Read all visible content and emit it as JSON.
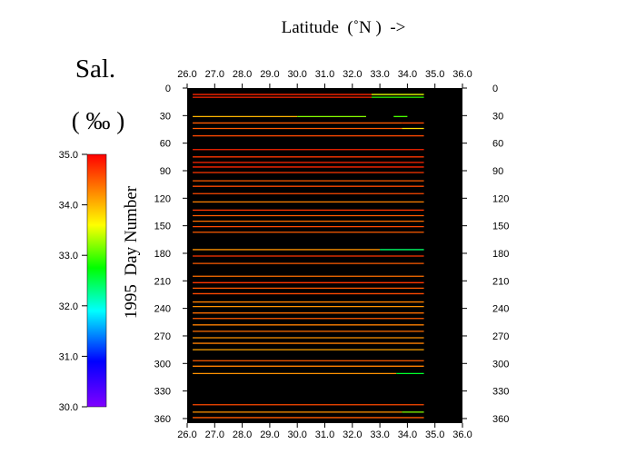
{
  "chart_data": {
    "type": "heatmap",
    "title": "Sal.",
    "unit": "( ‰ )",
    "xlabel": "Latitude  (˚N )  ->",
    "ylabel": "1995  Day Number",
    "x_ticks": [
      "26.0",
      "27.0",
      "28.0",
      "29.0",
      "30.0",
      "31.0",
      "32.0",
      "33.0",
      "34.0",
      "35.0",
      "36.0"
    ],
    "y_ticks": [
      "0",
      "30",
      "60",
      "90",
      "120",
      "150",
      "180",
      "210",
      "240",
      "270",
      "300",
      "330",
      "360"
    ],
    "xlim": [
      26.0,
      36.0
    ],
    "ylim": [
      0,
      365
    ],
    "y_inverted": true,
    "colorbar": {
      "range": [
        30.0,
        35.0
      ],
      "ticks": [
        "35.0",
        "34.0",
        "33.0",
        "32.0",
        "31.0",
        "30.0"
      ],
      "colormap": "rainbow (purple → blue → cyan → green → yellow → orange → red)"
    },
    "background_color": "#000000",
    "lat_extent": [
      26.2,
      34.6
    ],
    "transects": [
      {
        "day": 7,
        "segments": [
          {
            "from": 26.2,
            "to": 32.7,
            "sal": 34.8
          },
          {
            "from": 32.7,
            "to": 34.6,
            "sal": 33.5
          }
        ]
      },
      {
        "day": 10,
        "segments": [
          {
            "from": 26.2,
            "to": 32.7,
            "sal": 34.8
          },
          {
            "from": 32.7,
            "to": 34.6,
            "sal": 32.9
          }
        ]
      },
      {
        "day": 31,
        "segments": [
          {
            "from": 26.2,
            "to": 30.0,
            "sal": 34.0
          },
          {
            "from": 30.0,
            "to": 32.5,
            "sal": 33.2
          },
          {
            "from": 33.5,
            "to": 34.0,
            "sal": 33.0
          }
        ]
      },
      {
        "day": 38,
        "segments": [
          {
            "from": 26.2,
            "to": 33.8,
            "sal": 34.5
          },
          {
            "from": 33.8,
            "to": 34.6,
            "sal": 34.6
          }
        ]
      },
      {
        "day": 44,
        "segments": [
          {
            "from": 26.2,
            "to": 33.8,
            "sal": 34.5
          },
          {
            "from": 33.8,
            "to": 34.6,
            "sal": 33.8
          }
        ]
      },
      {
        "day": 52,
        "segments": [
          {
            "from": 26.2,
            "to": 34.6,
            "sal": 34.6
          }
        ]
      },
      {
        "day": 67,
        "segments": [
          {
            "from": 26.2,
            "to": 34.6,
            "sal": 34.8
          }
        ]
      },
      {
        "day": 75,
        "segments": [
          {
            "from": 26.2,
            "to": 34.6,
            "sal": 34.7
          }
        ]
      },
      {
        "day": 81,
        "segments": [
          {
            "from": 26.2,
            "to": 34.6,
            "sal": 34.8
          }
        ]
      },
      {
        "day": 86,
        "segments": [
          {
            "from": 26.2,
            "to": 34.6,
            "sal": 34.8
          }
        ]
      },
      {
        "day": 92,
        "segments": [
          {
            "from": 26.2,
            "to": 34.6,
            "sal": 34.7
          }
        ]
      },
      {
        "day": 101,
        "segments": [
          {
            "from": 26.2,
            "to": 34.6,
            "sal": 34.5
          }
        ]
      },
      {
        "day": 107,
        "segments": [
          {
            "from": 26.2,
            "to": 34.6,
            "sal": 34.6
          }
        ]
      },
      {
        "day": 115,
        "segments": [
          {
            "from": 26.2,
            "to": 34.6,
            "sal": 34.6
          }
        ]
      },
      {
        "day": 124,
        "segments": [
          {
            "from": 26.2,
            "to": 34.6,
            "sal": 34.3
          }
        ]
      },
      {
        "day": 133,
        "segments": [
          {
            "from": 26.2,
            "to": 34.6,
            "sal": 34.7
          }
        ]
      },
      {
        "day": 139,
        "segments": [
          {
            "from": 26.2,
            "to": 34.6,
            "sal": 34.5
          }
        ]
      },
      {
        "day": 145,
        "segments": [
          {
            "from": 26.2,
            "to": 34.6,
            "sal": 34.4
          }
        ]
      },
      {
        "day": 151,
        "segments": [
          {
            "from": 26.2,
            "to": 34.6,
            "sal": 34.6
          }
        ]
      },
      {
        "day": 157,
        "segments": [
          {
            "from": 26.2,
            "to": 34.6,
            "sal": 34.5
          }
        ]
      },
      {
        "day": 176,
        "segments": [
          {
            "from": 26.2,
            "to": 33.0,
            "sal": 34.2
          },
          {
            "from": 33.0,
            "to": 34.6,
            "sal": 32.4
          }
        ]
      },
      {
        "day": 183,
        "segments": [
          {
            "from": 26.2,
            "to": 34.6,
            "sal": 34.7
          }
        ]
      },
      {
        "day": 191,
        "segments": [
          {
            "from": 26.2,
            "to": 34.6,
            "sal": 34.5
          }
        ]
      },
      {
        "day": 205,
        "segments": [
          {
            "from": 26.2,
            "to": 34.6,
            "sal": 34.4
          }
        ]
      },
      {
        "day": 212,
        "segments": [
          {
            "from": 26.2,
            "to": 34.6,
            "sal": 34.7
          }
        ]
      },
      {
        "day": 218,
        "segments": [
          {
            "from": 26.2,
            "to": 34.6,
            "sal": 34.5
          }
        ]
      },
      {
        "day": 224,
        "segments": [
          {
            "from": 26.2,
            "to": 34.6,
            "sal": 34.6
          }
        ]
      },
      {
        "day": 233,
        "segments": [
          {
            "from": 26.2,
            "to": 34.6,
            "sal": 34.3
          }
        ]
      },
      {
        "day": 238,
        "segments": [
          {
            "from": 26.2,
            "to": 34.6,
            "sal": 34.2
          }
        ]
      },
      {
        "day": 245,
        "segments": [
          {
            "from": 26.2,
            "to": 34.6,
            "sal": 34.4
          }
        ]
      },
      {
        "day": 251,
        "segments": [
          {
            "from": 26.2,
            "to": 34.6,
            "sal": 34.5
          }
        ]
      },
      {
        "day": 258,
        "segments": [
          {
            "from": 26.2,
            "to": 34.6,
            "sal": 34.3
          }
        ]
      },
      {
        "day": 265,
        "segments": [
          {
            "from": 26.2,
            "to": 34.6,
            "sal": 34.4
          }
        ]
      },
      {
        "day": 272,
        "segments": [
          {
            "from": 26.2,
            "to": 34.6,
            "sal": 34.2
          }
        ]
      },
      {
        "day": 278,
        "segments": [
          {
            "from": 26.2,
            "to": 34.6,
            "sal": 34.3
          }
        ]
      },
      {
        "day": 285,
        "segments": [
          {
            "from": 26.2,
            "to": 34.6,
            "sal": 34.1
          }
        ]
      },
      {
        "day": 297,
        "segments": [
          {
            "from": 26.2,
            "to": 34.6,
            "sal": 34.5
          }
        ]
      },
      {
        "day": 303,
        "segments": [
          {
            "from": 26.2,
            "to": 34.6,
            "sal": 34.3
          }
        ]
      },
      {
        "day": 311,
        "segments": [
          {
            "from": 26.2,
            "to": 33.6,
            "sal": 34.2
          },
          {
            "from": 33.6,
            "to": 34.6,
            "sal": 32.6
          }
        ]
      },
      {
        "day": 345,
        "segments": [
          {
            "from": 26.2,
            "to": 34.6,
            "sal": 34.6
          }
        ]
      },
      {
        "day": 353,
        "segments": [
          {
            "from": 26.2,
            "to": 33.8,
            "sal": 34.2
          },
          {
            "from": 33.8,
            "to": 34.6,
            "sal": 33.2
          }
        ]
      },
      {
        "day": 359,
        "segments": [
          {
            "from": 26.2,
            "to": 34.6,
            "sal": 34.5
          }
        ]
      }
    ]
  }
}
